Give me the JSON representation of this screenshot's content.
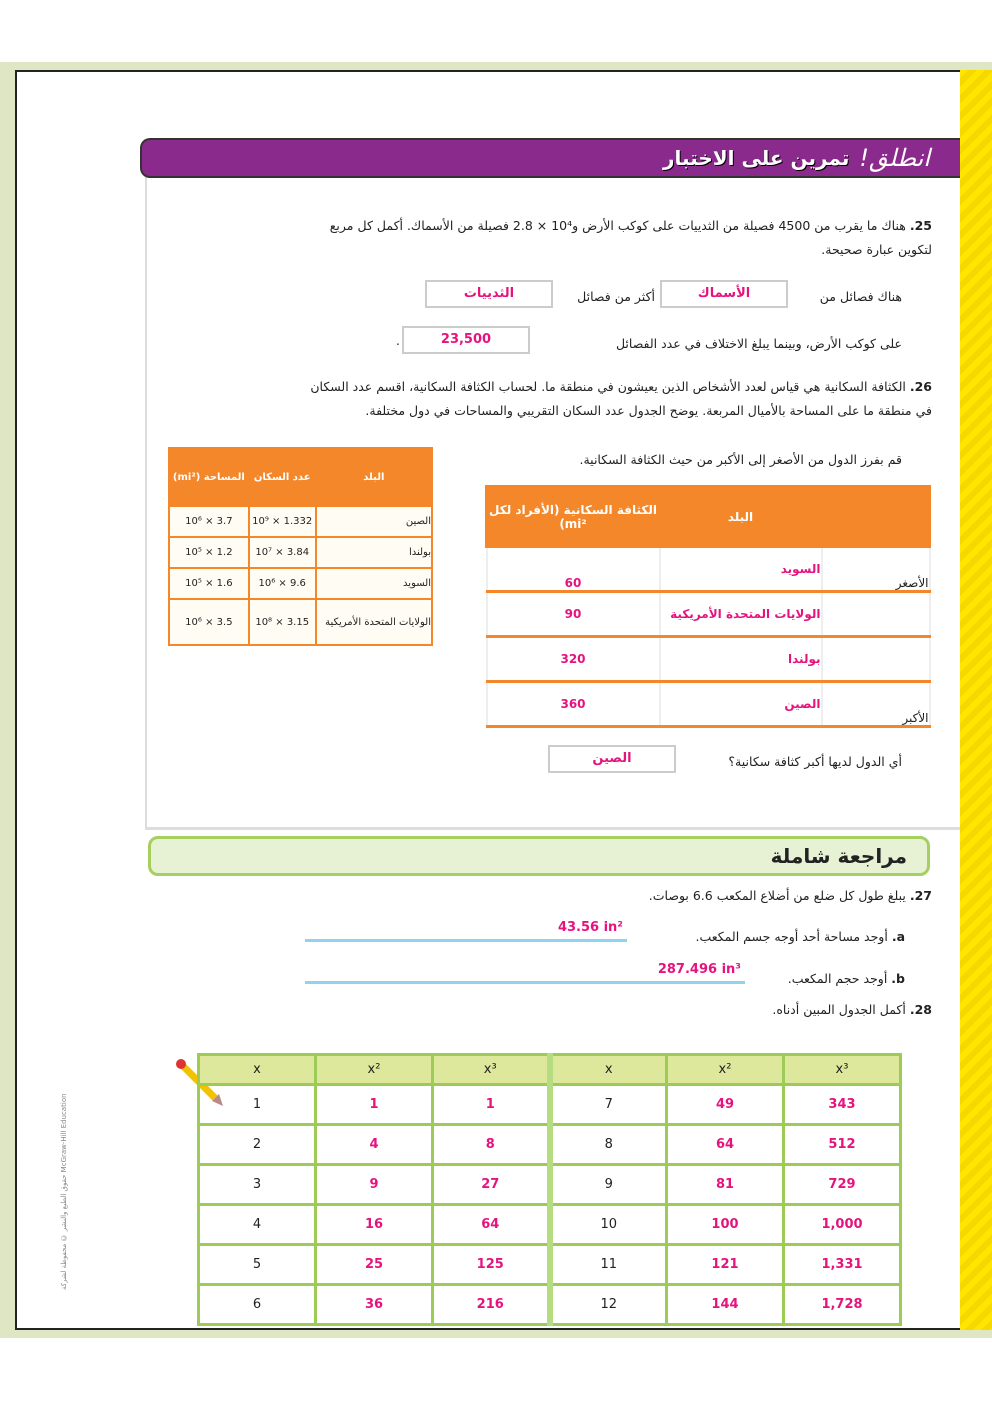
{
  "banner": {
    "title_script": "انطلق!",
    "title": "تمرين على الاختبار"
  },
  "q25": {
    "number": "25.",
    "text": "هناك ما يقرب من 4500 فصيلة من الثدييات على كوكب الأرض و10⁴ × 2.8 فصيلة من الأسماك. أكمل كل مربع لتكوين عبارة صحيحة.",
    "line1_a": "هناك فصائل من",
    "ans1": "الأسماك",
    "line1_b": "أكثر من فصائل",
    "ans2": "الثدييات",
    "line2": "على كوكب الأرض، وبينما يبلغ الاختلاف في عدد الفصائل",
    "ans3": "23,500",
    "dot": "."
  },
  "q26": {
    "number": "26.",
    "text": "الكثافة السكانية هي قياس لعدد الأشخاص الذين يعيشون في منطقة ما. لحساب الكثافة السكانية، اقسم عدد السكان في منطقة ما على المساحة بالأميال المربعة. يوضح الجدول عدد السكان التقريبي والمساحات في دول مختلفة.",
    "instruction": "قم بفرز الدول من الأصغر إلى الأكبر من حيث الكثافة السكانية.",
    "data_table": {
      "headers": [
        "البلد",
        "عدد السكان",
        "المساحة (mi²)"
      ],
      "rows": [
        [
          "الصين",
          "1.332 × 10⁹",
          "3.7 × 10⁶"
        ],
        [
          "بولندا",
          "3.84 × 10⁷",
          "1.2 × 10⁵"
        ],
        [
          "السويد",
          "9.6 × 10⁶",
          "1.6 × 10⁵"
        ],
        [
          "الولايات المتحدة الأمريكية",
          "3.15 × 10⁸",
          "3.5 × 10⁶"
        ]
      ]
    },
    "sort_table": {
      "headers": [
        "",
        "البلد",
        "الكثافة السكانية (الأفراد لكل mi²)"
      ],
      "rows": [
        [
          "الأصغر",
          "السويد",
          "60"
        ],
        [
          "",
          "الولايات المتحدة الأمريكية",
          "90"
        ],
        [
          "",
          "بولندا",
          "320"
        ],
        [
          "الأكبر",
          "الصين",
          "360"
        ]
      ]
    },
    "question": "أي الدول لديها أكبر كثافة سكانية؟",
    "answer": "الصين"
  },
  "review": {
    "title": "مراجعة شاملة"
  },
  "q27": {
    "number": "27.",
    "text": "يبلغ طول كل ضلع من أضلاع المكعب 6.6 بوصات.",
    "a_label": "a.",
    "a_text": "أوجد مساحة أحد أوجه جسم المكعب.",
    "a_ans": "43.56 in²",
    "b_label": "b.",
    "b_text": "أوجد حجم المكعب.",
    "b_ans": "287.496 in³"
  },
  "q28": {
    "number": "28.",
    "text": "أكمل الجدول المبين أدناه.",
    "headers": [
      "x",
      "x²",
      "x³",
      "x",
      "x²",
      "x³"
    ],
    "rows": [
      [
        "1",
        "1",
        "1",
        "7",
        "49",
        "343"
      ],
      [
        "2",
        "4",
        "8",
        "8",
        "64",
        "512"
      ],
      [
        "3",
        "9",
        "27",
        "9",
        "81",
        "729"
      ],
      [
        "4",
        "16",
        "64",
        "10",
        "100",
        "1,000"
      ],
      [
        "5",
        "25",
        "125",
        "11",
        "121",
        "1,331"
      ],
      [
        "6",
        "36",
        "216",
        "12",
        "144",
        "1,728"
      ]
    ]
  },
  "side_text": "حقوق الطبع والنشر © محفوظة لشركة McGraw-Hill Education",
  "colors": {
    "banner": "#8b2a8d",
    "orange": "#f4872a",
    "answer": "#e6137f",
    "green": "#9ccc56"
  }
}
